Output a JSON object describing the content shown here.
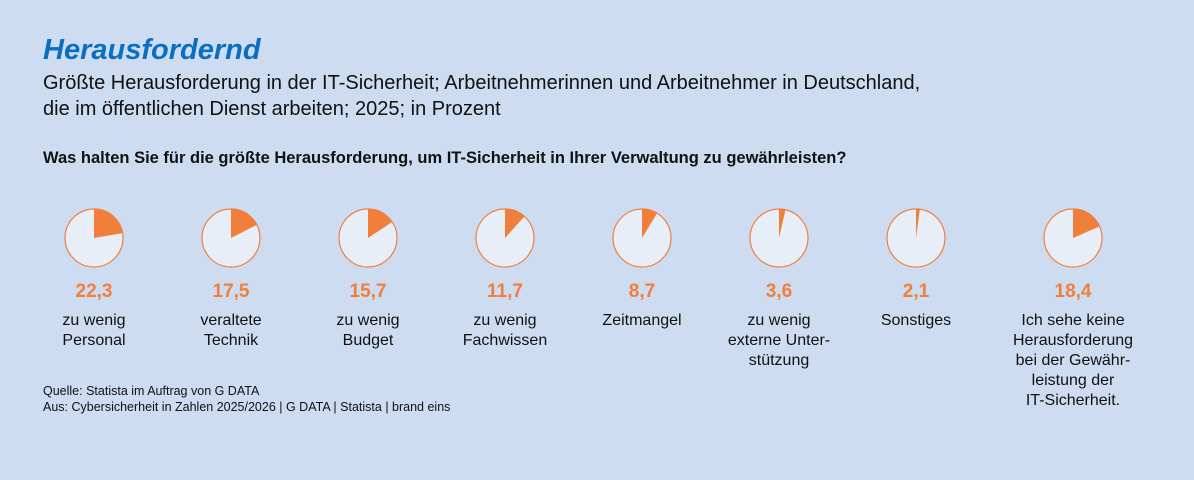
{
  "title": "Herausfordernd",
  "subtitle_lines": [
    "Größte Herausforderung in der IT-Sicherheit; Arbeitnehmerinnen und Arbeitnehmer in Deutschland,",
    "die im öffentlichen Dienst arbeiten; 2025; in Prozent"
  ],
  "question": "Was halten Sie für die größte Herausforderung, um IT-Sicherheit in Ihrer Verwaltung zu gewährleisten?",
  "colors": {
    "accent": "#f07f3c",
    "pie_bg": "#e8eef8",
    "title": "#0a6fc2",
    "background": "#cddcf0"
  },
  "chart_data": {
    "type": "pie",
    "unit": "Prozent",
    "items": [
      {
        "value": 22.3,
        "value_label": "22,3",
        "label_lines": [
          "zu wenig",
          "Personal"
        ]
      },
      {
        "value": 17.5,
        "value_label": "17,5",
        "label_lines": [
          "veraltete",
          "Technik"
        ]
      },
      {
        "value": 15.7,
        "value_label": "15,7",
        "label_lines": [
          "zu wenig",
          "Budget"
        ]
      },
      {
        "value": 11.7,
        "value_label": "11,7",
        "label_lines": [
          "zu wenig",
          "Fachwissen"
        ]
      },
      {
        "value": 8.7,
        "value_label": "8,7",
        "label_lines": [
          "Zeitmangel"
        ]
      },
      {
        "value": 3.6,
        "value_label": "3,6",
        "label_lines": [
          "zu wenig",
          "externe Unter-",
          "stützung"
        ]
      },
      {
        "value": 2.1,
        "value_label": "2,1",
        "label_lines": [
          "Sonstiges"
        ]
      },
      {
        "value": 18.4,
        "value_label": "18,4",
        "label_lines": [
          "Ich sehe keine",
          "Herausforderung",
          "bei der Gewähr-",
          "leistung der",
          "IT-Sicherheit."
        ]
      }
    ]
  },
  "source": [
    "Quelle: Statista im Auftrag von G DATA",
    "Aus: Cybersicherheit in Zahlen 2025/2026 | G DATA | Statista | brand eins"
  ]
}
